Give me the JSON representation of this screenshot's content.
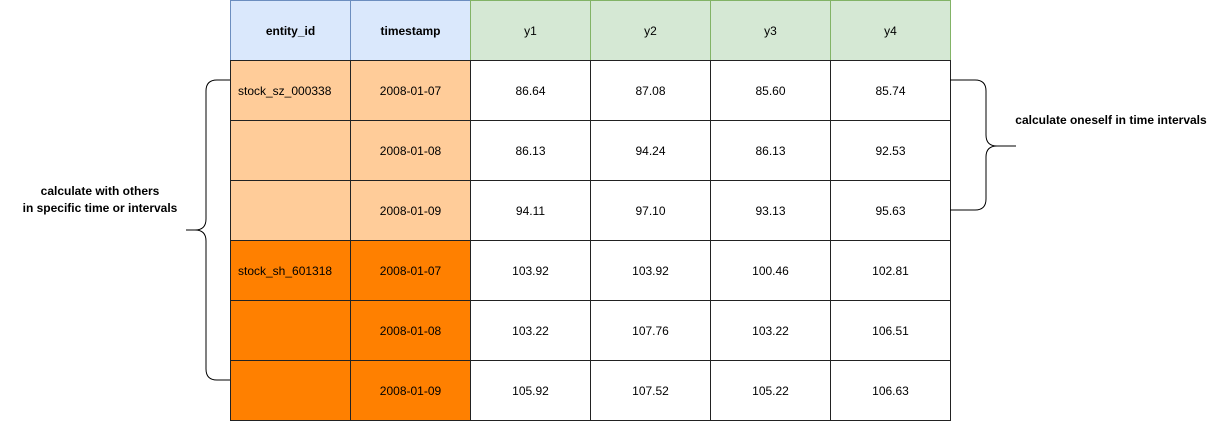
{
  "table": {
    "headers": [
      "entity_id",
      "timestamp",
      "y1",
      "y2",
      "y3",
      "y4"
    ],
    "rows": [
      {
        "entity_id": "stock_sz_000338",
        "timestamp": "2008-01-07",
        "y1": "86.64",
        "y2": "87.08",
        "y3": "85.60",
        "y4": "85.74",
        "group_color": "#ffcc99"
      },
      {
        "entity_id": "",
        "timestamp": "2008-01-08",
        "y1": "86.13",
        "y2": "94.24",
        "y3": "86.13",
        "y4": "92.53",
        "group_color": "#ffcc99"
      },
      {
        "entity_id": "",
        "timestamp": "2008-01-09",
        "y1": "94.11",
        "y2": "97.10",
        "y3": "93.13",
        "y4": "95.63",
        "group_color": "#ffcc99"
      },
      {
        "entity_id": "stock_sh_601318",
        "timestamp": "2008-01-07",
        "y1": "103.92",
        "y2": "103.92",
        "y3": "100.46",
        "y4": "102.81",
        "group_color": "#ff8000"
      },
      {
        "entity_id": "",
        "timestamp": "2008-01-08",
        "y1": "103.22",
        "y2": "107.76",
        "y3": "103.22",
        "y4": "106.51",
        "group_color": "#ff8000"
      },
      {
        "entity_id": "",
        "timestamp": "2008-01-09",
        "y1": "105.92",
        "y2": "107.52",
        "y3": "105.22",
        "y4": "106.63",
        "group_color": "#ff8000"
      }
    ]
  },
  "annotations": {
    "left_line1": "calculate with others",
    "left_line2": "in specific time or intervals",
    "right": "calculate  oneself in time intervals"
  },
  "colors": {
    "header_id_fill": "#dae8fc",
    "header_y_fill": "#d5e8d4",
    "group1_fill": "#ffcc99",
    "group2_fill": "#ff8000"
  }
}
